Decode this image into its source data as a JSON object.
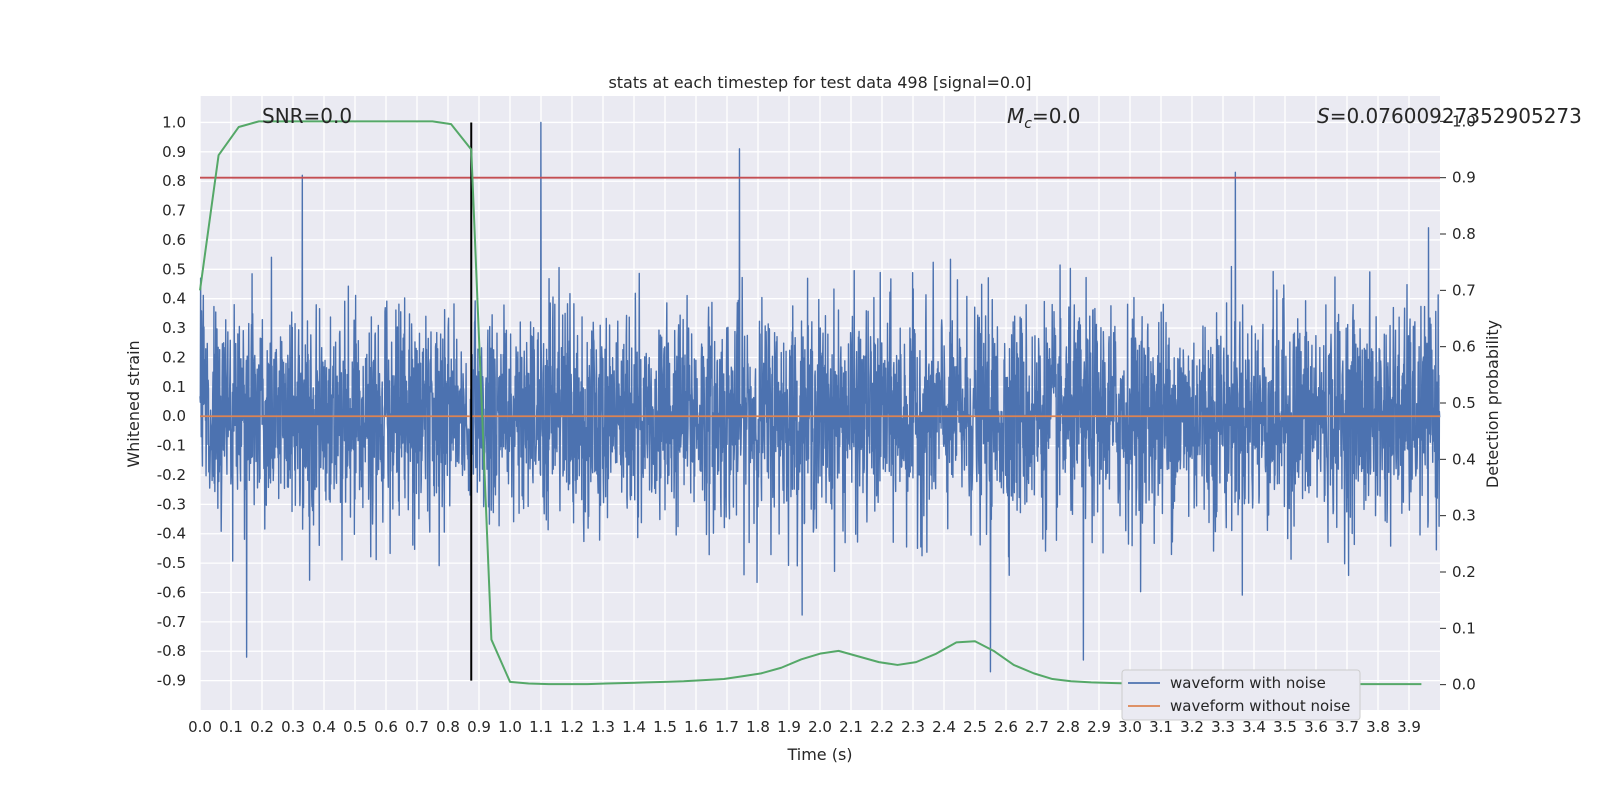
{
  "chart_data": {
    "type": "line",
    "title": "stats at each timestep for test data 498 [signal=0.0]",
    "xlabel": "Time (s)",
    "ylabel_left": "Whitened strain",
    "ylabel_right": "Detection probability",
    "xlim": [
      0.0,
      4.0
    ],
    "ylim_left": [
      -1.0,
      1.09
    ],
    "ylim_right": [
      -0.045,
      1.045
    ],
    "x_ticks": [
      0.0,
      0.1,
      0.2,
      0.3,
      0.4,
      0.5,
      0.6,
      0.7,
      0.8,
      0.9,
      1.0,
      1.1,
      1.2,
      1.3,
      1.4,
      1.5,
      1.6,
      1.7,
      1.8,
      1.9,
      2.0,
      2.1,
      2.2,
      2.3,
      2.4,
      2.5,
      2.6,
      2.7,
      2.8,
      2.9,
      3.0,
      3.1,
      3.2,
      3.3,
      3.4,
      3.5,
      3.6,
      3.7,
      3.8,
      3.9
    ],
    "x_tick_labels": [
      "0.0",
      "0.1",
      "0.2",
      "0.3",
      "0.4",
      "0.5",
      "0.6",
      "0.7",
      "0.8",
      "0.9",
      "1.0",
      "1.1",
      "1.2",
      "1.3",
      "1.4",
      "1.5",
      "1.6",
      "1.7",
      "1.8",
      "1.9",
      "2.0",
      "2.1",
      "2.2",
      "2.3",
      "2.4",
      "2.5",
      "2.6",
      "2.7",
      "2.8",
      "2.9",
      "3.0",
      "3.1",
      "3.2",
      "3.3",
      "3.4",
      "3.5",
      "3.6",
      "3.7",
      "3.8",
      "3.9"
    ],
    "y_left_ticks": [
      1.0,
      0.9,
      0.8,
      0.7,
      0.6,
      0.5,
      0.4,
      0.3,
      0.2,
      0.1,
      0.0,
      -0.1,
      -0.2,
      -0.3,
      -0.4,
      -0.5,
      -0.6,
      -0.7,
      -0.8,
      -0.9
    ],
    "y_left_tick_labels": [
      "1.0",
      "0.9",
      "0.8",
      "0.7",
      "0.6",
      "0.5",
      "0.4",
      "0.3",
      "0.2",
      "0.1",
      "0.0",
      "-0.1",
      "-0.2",
      "-0.3",
      "-0.4",
      "-0.5",
      "-0.6",
      "-0.7",
      "-0.8",
      "-0.9"
    ],
    "y_right_ticks": [
      1.0,
      0.9,
      0.8,
      0.7,
      0.6,
      0.5,
      0.4,
      0.3,
      0.2,
      0.1,
      0.0
    ],
    "y_right_tick_labels": [
      "1.0",
      "0.9",
      "0.8",
      "0.7",
      "0.6",
      "0.5",
      "0.4",
      "0.3",
      "0.2",
      "0.1",
      "0.0"
    ],
    "grid": true,
    "annotations": [
      {
        "text": "SNR=0.0"
      },
      {
        "text": "M_c=0.0",
        "main": "M",
        "sub": "c",
        "rest": "=0.0"
      },
      {
        "text": "S=0.07600927352905273",
        "main": "S",
        "rest": "=0.07600927352905273"
      }
    ],
    "threshold_line": {
      "axis": "right",
      "y": 0.9,
      "color": "#c44e52"
    },
    "vertical_line": {
      "x": 0.875,
      "y_range": [
        -0.9,
        1.0
      ],
      "color": "#000000"
    },
    "series": [
      {
        "name": "waveform with noise",
        "axis": "left",
        "color": "#4c72b0",
        "style": "dense noise, approx. Gaussian, std ~0.18",
        "range_approx": [
          -0.87,
          1.0
        ],
        "notable_peaks": [
          {
            "x": 1.1,
            "y": 1.0
          },
          {
            "x": 1.74,
            "y": 0.91
          },
          {
            "x": 0.33,
            "y": 0.82
          },
          {
            "x": 3.34,
            "y": 0.83
          },
          {
            "x": 0.15,
            "y": -0.82
          },
          {
            "x": 2.55,
            "y": -0.87
          },
          {
            "x": 2.85,
            "y": -0.83
          }
        ]
      },
      {
        "name": "waveform without noise",
        "axis": "left",
        "color": "#dd8452",
        "x": [
          0.0,
          4.0
        ],
        "y": [
          0.0,
          0.0
        ]
      },
      {
        "axis": "right",
        "color": "#55a868",
        "x": [
          0.0,
          0.06,
          0.125,
          0.19,
          0.25,
          0.31,
          0.375,
          0.44,
          0.5,
          0.56,
          0.625,
          0.69,
          0.75,
          0.81,
          0.875,
          0.94,
          1.0,
          1.06,
          1.125,
          1.19,
          1.25,
          1.31,
          1.375,
          1.44,
          1.5,
          1.56,
          1.625,
          1.69,
          1.75,
          1.81,
          1.875,
          1.94,
          2.0,
          2.06,
          2.125,
          2.19,
          2.25,
          2.31,
          2.375,
          2.44,
          2.5,
          2.56,
          2.625,
          2.69,
          2.75,
          2.81,
          2.875,
          2.94,
          3.0,
          3.06,
          3.125,
          3.19,
          3.25,
          3.31,
          3.375,
          3.44,
          3.5,
          3.56,
          3.625,
          3.69,
          3.75,
          3.81,
          3.875,
          3.94
        ],
        "y": [
          0.7,
          0.94,
          0.99,
          1.0,
          1.0,
          1.0,
          1.0,
          1.0,
          1.0,
          1.0,
          1.0,
          1.0,
          1.0,
          0.995,
          0.95,
          0.08,
          0.005,
          0.002,
          0.001,
          0.001,
          0.001,
          0.002,
          0.003,
          0.004,
          0.005,
          0.006,
          0.008,
          0.01,
          0.015,
          0.02,
          0.03,
          0.045,
          0.055,
          0.06,
          0.05,
          0.04,
          0.035,
          0.04,
          0.055,
          0.075,
          0.077,
          0.06,
          0.035,
          0.02,
          0.01,
          0.006,
          0.004,
          0.003,
          0.002,
          0.001,
          0.001,
          0.001,
          0.001,
          0.001,
          0.001,
          0.001,
          0.001,
          0.001,
          0.001,
          0.001,
          0.001,
          0.001,
          0.001,
          0.001
        ]
      }
    ],
    "legend": {
      "location": "lower-right",
      "entries": [
        {
          "label": "waveform with noise",
          "color": "#4c72b0"
        },
        {
          "label": "waveform without noise",
          "color": "#dd8452"
        }
      ]
    },
    "colors": {
      "axes_bg": "#eaeaf2",
      "grid": "#ffffff",
      "noise": "#4c72b0",
      "clean": "#dd8452",
      "prob": "#55a868",
      "threshold": "#c44e52",
      "vline": "#000000"
    }
  }
}
